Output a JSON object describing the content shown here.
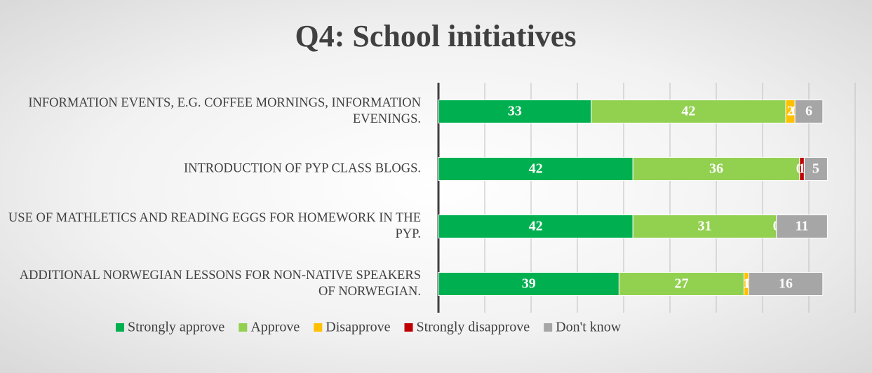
{
  "chart_data": {
    "type": "stacked-barh",
    "title": "Q4: School initiatives",
    "categories": [
      "INFORMATION EVENTS, E.G. COFFEE MORNINGS, INFORMATION EVENINGS.",
      "INTRODUCTION OF PYP CLASS BLOGS.",
      "USE OF MATHLETICS AND READING EGGS FOR HOMEWORK IN THE PYP.",
      "ADDITIONAL NORWEGIAN LESSONS FOR NON-NATIVE SPEAKERS OF NORWEGIAN."
    ],
    "series": [
      {
        "name": "Strongly approve",
        "color": "#00b050",
        "values": [
          33,
          42,
          42,
          39
        ]
      },
      {
        "name": "Approve",
        "color": "#92d050",
        "values": [
          42,
          36,
          31,
          27
        ]
      },
      {
        "name": "Disapprove",
        "color": "#ffc000",
        "values": [
          2,
          0,
          0,
          1
        ]
      },
      {
        "name": "Strongly disapprove",
        "color": "#c00000",
        "values": [
          0,
          1,
          0,
          0
        ]
      },
      {
        "name": "Don't know",
        "color": "#a6a6a6",
        "values": [
          6,
          5,
          11,
          16
        ]
      }
    ],
    "xlim": [
      0,
      90
    ],
    "xticks": [
      0,
      10,
      20,
      30,
      40,
      50,
      60,
      70,
      80,
      90
    ],
    "grid": true,
    "legend": "bottom"
  }
}
